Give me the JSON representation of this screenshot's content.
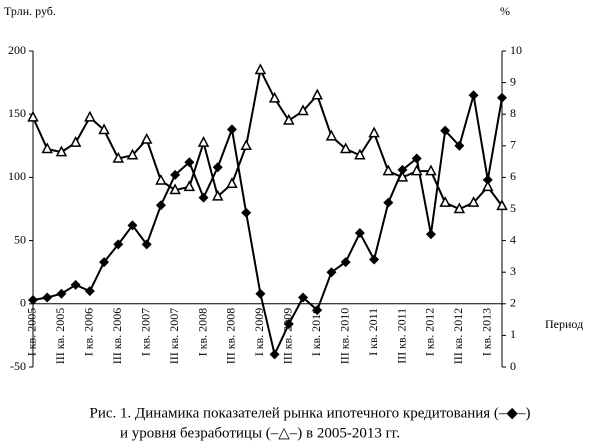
{
  "chart_data": {
    "type": "line",
    "y_unit_label": "Трлн.  руб.",
    "y2_unit_label": "%",
    "x_label": "Период",
    "caption": [
      "Рис. 1. Динамика показателей рынка ипотечного кредитования (–◆–)",
      "и уровня безработицы (–△–) в 2005-2013 гг."
    ],
    "categories": [
      "I кв. 2005",
      null,
      "III кв. 2005",
      null,
      "I кв. 2006",
      null,
      "III кв. 2006",
      null,
      "I кв. 2007",
      null,
      "III кв. 2007",
      null,
      "I кв. 2008",
      null,
      "III кв. 2008",
      null,
      "I кв. 2009",
      null,
      "III кв. 2009",
      null,
      "I кв. 2010",
      null,
      "III кв. 2010",
      null,
      "I кв. 2011",
      null,
      "III кв. 2011",
      null,
      "I кв. 2012",
      null,
      "III кв. 2012",
      null,
      "I кв. 2013",
      null
    ],
    "series": [
      {
        "color": "#000000",
        "marker": "diamond",
        "values": [
          3,
          5,
          8,
          15,
          10,
          33,
          47,
          62,
          47,
          78,
          102,
          112,
          84,
          108,
          138,
          72,
          8,
          -40,
          -16,
          5,
          -5,
          25,
          33,
          56,
          35,
          80,
          106,
          115,
          55,
          137,
          125,
          165,
          98,
          163
        ]
      },
      {
        "color": "#000000",
        "marker": "triangle",
        "axis": "y2",
        "values": [
          7.9,
          6.9,
          6.8,
          7.1,
          7.9,
          7.5,
          6.6,
          6.7,
          7.2,
          5.9,
          5.6,
          5.7,
          7.1,
          5.4,
          5.8,
          7.0,
          9.4,
          8.5,
          7.8,
          8.1,
          8.6,
          7.3,
          6.9,
          6.7,
          7.4,
          6.2,
          6.0,
          6.2,
          6.2,
          5.2,
          5.0,
          5.2,
          5.7,
          5.1
        ]
      }
    ],
    "ylim": [
      -50,
      200
    ],
    "yticks": [
      -50,
      0,
      50,
      100,
      150,
      200
    ],
    "y2lim": [
      0,
      10
    ],
    "y2ticks": [
      0,
      1,
      2,
      3,
      4,
      5,
      6,
      7,
      8,
      9,
      10
    ],
    "grid": false
  }
}
